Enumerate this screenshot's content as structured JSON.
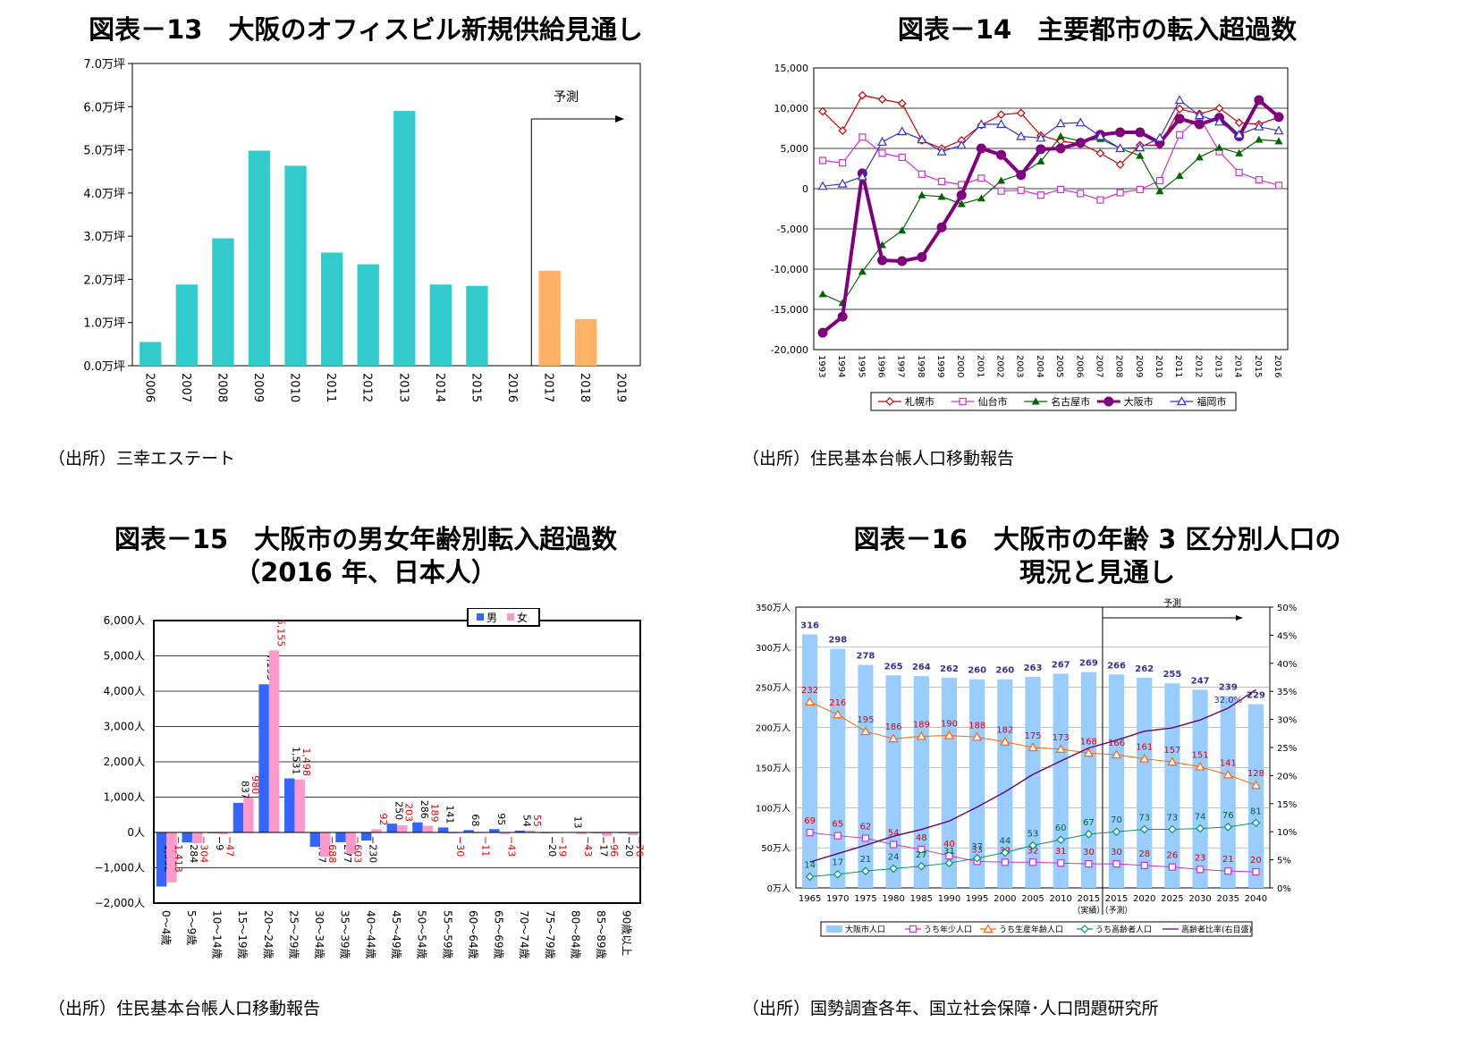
{
  "fig13": {
    "title": "図表－13　大阪のオフィスビル新規供給見通し",
    "source": "（出所）三幸エステート",
    "chart_data": {
      "type": "bar",
      "categories": [
        "2006",
        "2007",
        "2008",
        "2009",
        "2010",
        "2011",
        "2012",
        "2013",
        "2014",
        "2015",
        "2016",
        "2017",
        "2018",
        "2019"
      ],
      "values": [
        0.55,
        1.88,
        2.95,
        4.98,
        4.63,
        2.62,
        2.35,
        5.9,
        1.88,
        1.85,
        null,
        2.2,
        1.08,
        null
      ],
      "forecast_from": "2017",
      "yticks": [
        "0.0万坪",
        "1.0万坪",
        "2.0万坪",
        "3.0万坪",
        "4.0万坪",
        "5.0万坪",
        "6.0万坪",
        "7.0万坪"
      ],
      "ylim": [
        0,
        7
      ],
      "annotation": "予測",
      "colors": {
        "actual": "#33CCCC",
        "forecast": "#FFB266"
      }
    }
  },
  "fig14": {
    "title": "図表－14　主要都市の転入超過数",
    "source": "（出所）住民基本台帳人口移動報告",
    "chart_data": {
      "type": "line",
      "x": [
        "1993",
        "1994",
        "1995",
        "1996",
        "1997",
        "1998",
        "1999",
        "2000",
        "2001",
        "2002",
        "2003",
        "2004",
        "2005",
        "2006",
        "2007",
        "2008",
        "2009",
        "2010",
        "2011",
        "2012",
        "2013",
        "2014",
        "2015",
        "2016"
      ],
      "yticks": [
        "15,000",
        "10,000",
        "5,000",
        "0",
        "-5,000",
        "-10,000",
        "-15,000",
        "-20,000"
      ],
      "ylim": [
        -20000,
        15000
      ],
      "series": [
        {
          "name": "札幌市",
          "color": "#CC0000",
          "marker": "diamond",
          "values": [
            9600,
            7200,
            11600,
            11100,
            10600,
            6000,
            5000,
            6000,
            7900,
            9200,
            9400,
            6600,
            5900,
            5600,
            4400,
            3000,
            5400,
            5400,
            9900,
            9300,
            10000,
            8200,
            8000,
            8900
          ]
        },
        {
          "name": "仙台市",
          "color": "#CC33CC",
          "marker": "square",
          "values": [
            3500,
            3200,
            6400,
            4400,
            3900,
            1800,
            900,
            500,
            1300,
            -300,
            -200,
            -800,
            -100,
            -600,
            -1400,
            -500,
            -100,
            1000,
            6700,
            8900,
            4600,
            2000,
            1100,
            400
          ]
        },
        {
          "name": "名古屋市",
          "color": "#006600",
          "marker": "triangle-filled",
          "values": [
            -13100,
            -14200,
            -10300,
            -7000,
            -5200,
            -800,
            -1000,
            -1900,
            -1200,
            1000,
            1800,
            3400,
            6500,
            5900,
            6200,
            5000,
            4100,
            -300,
            1600,
            3900,
            5100,
            4400,
            6100,
            5900
          ]
        },
        {
          "name": "大阪市",
          "color": "#7F007F",
          "marker": "circle-filled",
          "values": [
            -17900,
            -15900,
            1900,
            -8900,
            -9000,
            -8500,
            -4800,
            -800,
            5000,
            4200,
            1700,
            4900,
            5000,
            5700,
            6700,
            7000,
            7000,
            5700,
            8700,
            8000,
            8800,
            6500,
            11000,
            8900
          ]
        },
        {
          "name": "福岡市",
          "color": "#3333CC",
          "marker": "triangle-open",
          "values": [
            300,
            600,
            1500,
            5800,
            7100,
            6100,
            4600,
            5400,
            8000,
            8000,
            6500,
            6300,
            8100,
            8200,
            6500,
            5000,
            5100,
            6300,
            11000,
            9100,
            8300,
            6700,
            7700,
            7200
          ]
        }
      ]
    }
  },
  "fig15": {
    "title_line1": "図表－15　大阪市の男女年齢別転入超過数",
    "title_line2": "（2016 年、日本人）",
    "source": "（出所）住民基本台帳人口移動報告",
    "chart_data": {
      "type": "bar",
      "categories": [
        "0～4歳",
        "5～9歳",
        "10～14歳",
        "15～19歳",
        "20～24歳",
        "25～29歳",
        "30～34歳",
        "35～39歳",
        "40～44歳",
        "45～49歳",
        "50～54歳",
        "55～59歳",
        "60～64歳",
        "65～69歳",
        "70～74歳",
        "75～79歳",
        "80～84歳",
        "85～89歳",
        "90歳以上"
      ],
      "yticks": [
        "6,000人",
        "5,000人",
        "4,000人",
        "3,000人",
        "2,000人",
        "1,000人",
        "0人",
        "−1,000人",
        "−2,000人"
      ],
      "ylim": [
        -2000,
        6000
      ],
      "series": [
        {
          "name": "男",
          "color": "#3366FF",
          "values": [
            -1532,
            -284,
            -9,
            837,
            4195,
            1531,
            -407,
            -277,
            -230,
            250,
            286,
            141,
            68,
            95,
            54,
            -20,
            13,
            -17,
            -20
          ],
          "labels": [
            "−1,532",
            "−284",
            "−9",
            "837",
            "4,195",
            "1,531",
            "−407",
            "−277",
            "−230",
            "250",
            "286",
            "141",
            "68",
            "95",
            "54",
            "−20",
            "13",
            "−17",
            "−20"
          ]
        },
        {
          "name": "女",
          "color": "#FF99CC",
          "values": [
            -1413,
            -304,
            -47,
            980,
            5155,
            1498,
            -688,
            -603,
            92,
            203,
            189,
            -30,
            -11,
            -43,
            55,
            -19,
            -43,
            -96,
            -76
          ],
          "labels": [
            "−1,413",
            "−304",
            "−47",
            "980",
            "5,155",
            "1,498",
            "−688",
            "−603",
            "92",
            "203",
            "189",
            "−30",
            "−11",
            "−43",
            "55",
            "−19",
            "−43",
            "−96",
            "−76"
          ]
        }
      ]
    }
  },
  "fig16": {
    "title_line1": "図表－16　大阪市の年齢 3 区分別人口の",
    "title_line2": "現況と見通し",
    "source": "（出所）国勢調査各年、国立社会保障･人口問題研究所",
    "chart_data": {
      "type": "bar",
      "categories": [
        "1965",
        "1970",
        "1975",
        "1980",
        "1985",
        "1990",
        "1995",
        "2000",
        "2005",
        "2010",
        "2015",
        "2015",
        "2020",
        "2025",
        "2030",
        "2035",
        "2040"
      ],
      "sublabels": [
        "",
        "",
        "",
        "",
        "",
        "",
        "",
        "",
        "",
        "",
        "（実績）",
        "（予測）",
        "",
        "",
        "",
        "",
        ""
      ],
      "yticks_left": [
        "0万人",
        "50万人",
        "100万人",
        "150万人",
        "200万人",
        "250万人",
        "300万人",
        "350万人"
      ],
      "yticks_right": [
        "0%",
        "5%",
        "10%",
        "15%",
        "20%",
        "25%",
        "30%",
        "35%",
        "40%",
        "45%",
        "50%"
      ],
      "ylim_left": [
        0,
        350
      ],
      "ylim_right": [
        0,
        50
      ],
      "annotation": "予測",
      "ratio_label": "32.0%",
      "series": [
        {
          "name": "大阪市人口",
          "color": "#99CCFF",
          "values": [
            316,
            298,
            278,
            265,
            264,
            262,
            260,
            260,
            263,
            267,
            269,
            266,
            262,
            255,
            247,
            239,
            229
          ]
        },
        {
          "name": "うち年少人口",
          "color": "#CC33CC",
          "values": [
            69,
            65,
            62,
            54,
            48,
            40,
            33,
            32,
            32,
            31,
            30,
            30,
            28,
            26,
            23,
            21,
            20
          ]
        },
        {
          "name": "うち生産年齢人口",
          "color": "#FF6600",
          "values": [
            232,
            216,
            195,
            186,
            189,
            190,
            188,
            182,
            175,
            173,
            168,
            166,
            161,
            157,
            151,
            141,
            128
          ]
        },
        {
          "name": "うち高齢者人口",
          "color": "#009966",
          "values": [
            14,
            17,
            21,
            24,
            27,
            31,
            37,
            44,
            53,
            60,
            67,
            70,
            73,
            73,
            74,
            76,
            81
          ]
        },
        {
          "name": "高齢者比率(右目盛)",
          "color": "#660066",
          "values": [
            4.6,
            6.1,
            7.6,
            9.2,
            10.4,
            11.9,
            14.4,
            17.1,
            20.2,
            22.6,
            24.9,
            26.3,
            27.9,
            28.5,
            29.9,
            32.0,
            35.3
          ]
        }
      ]
    }
  }
}
